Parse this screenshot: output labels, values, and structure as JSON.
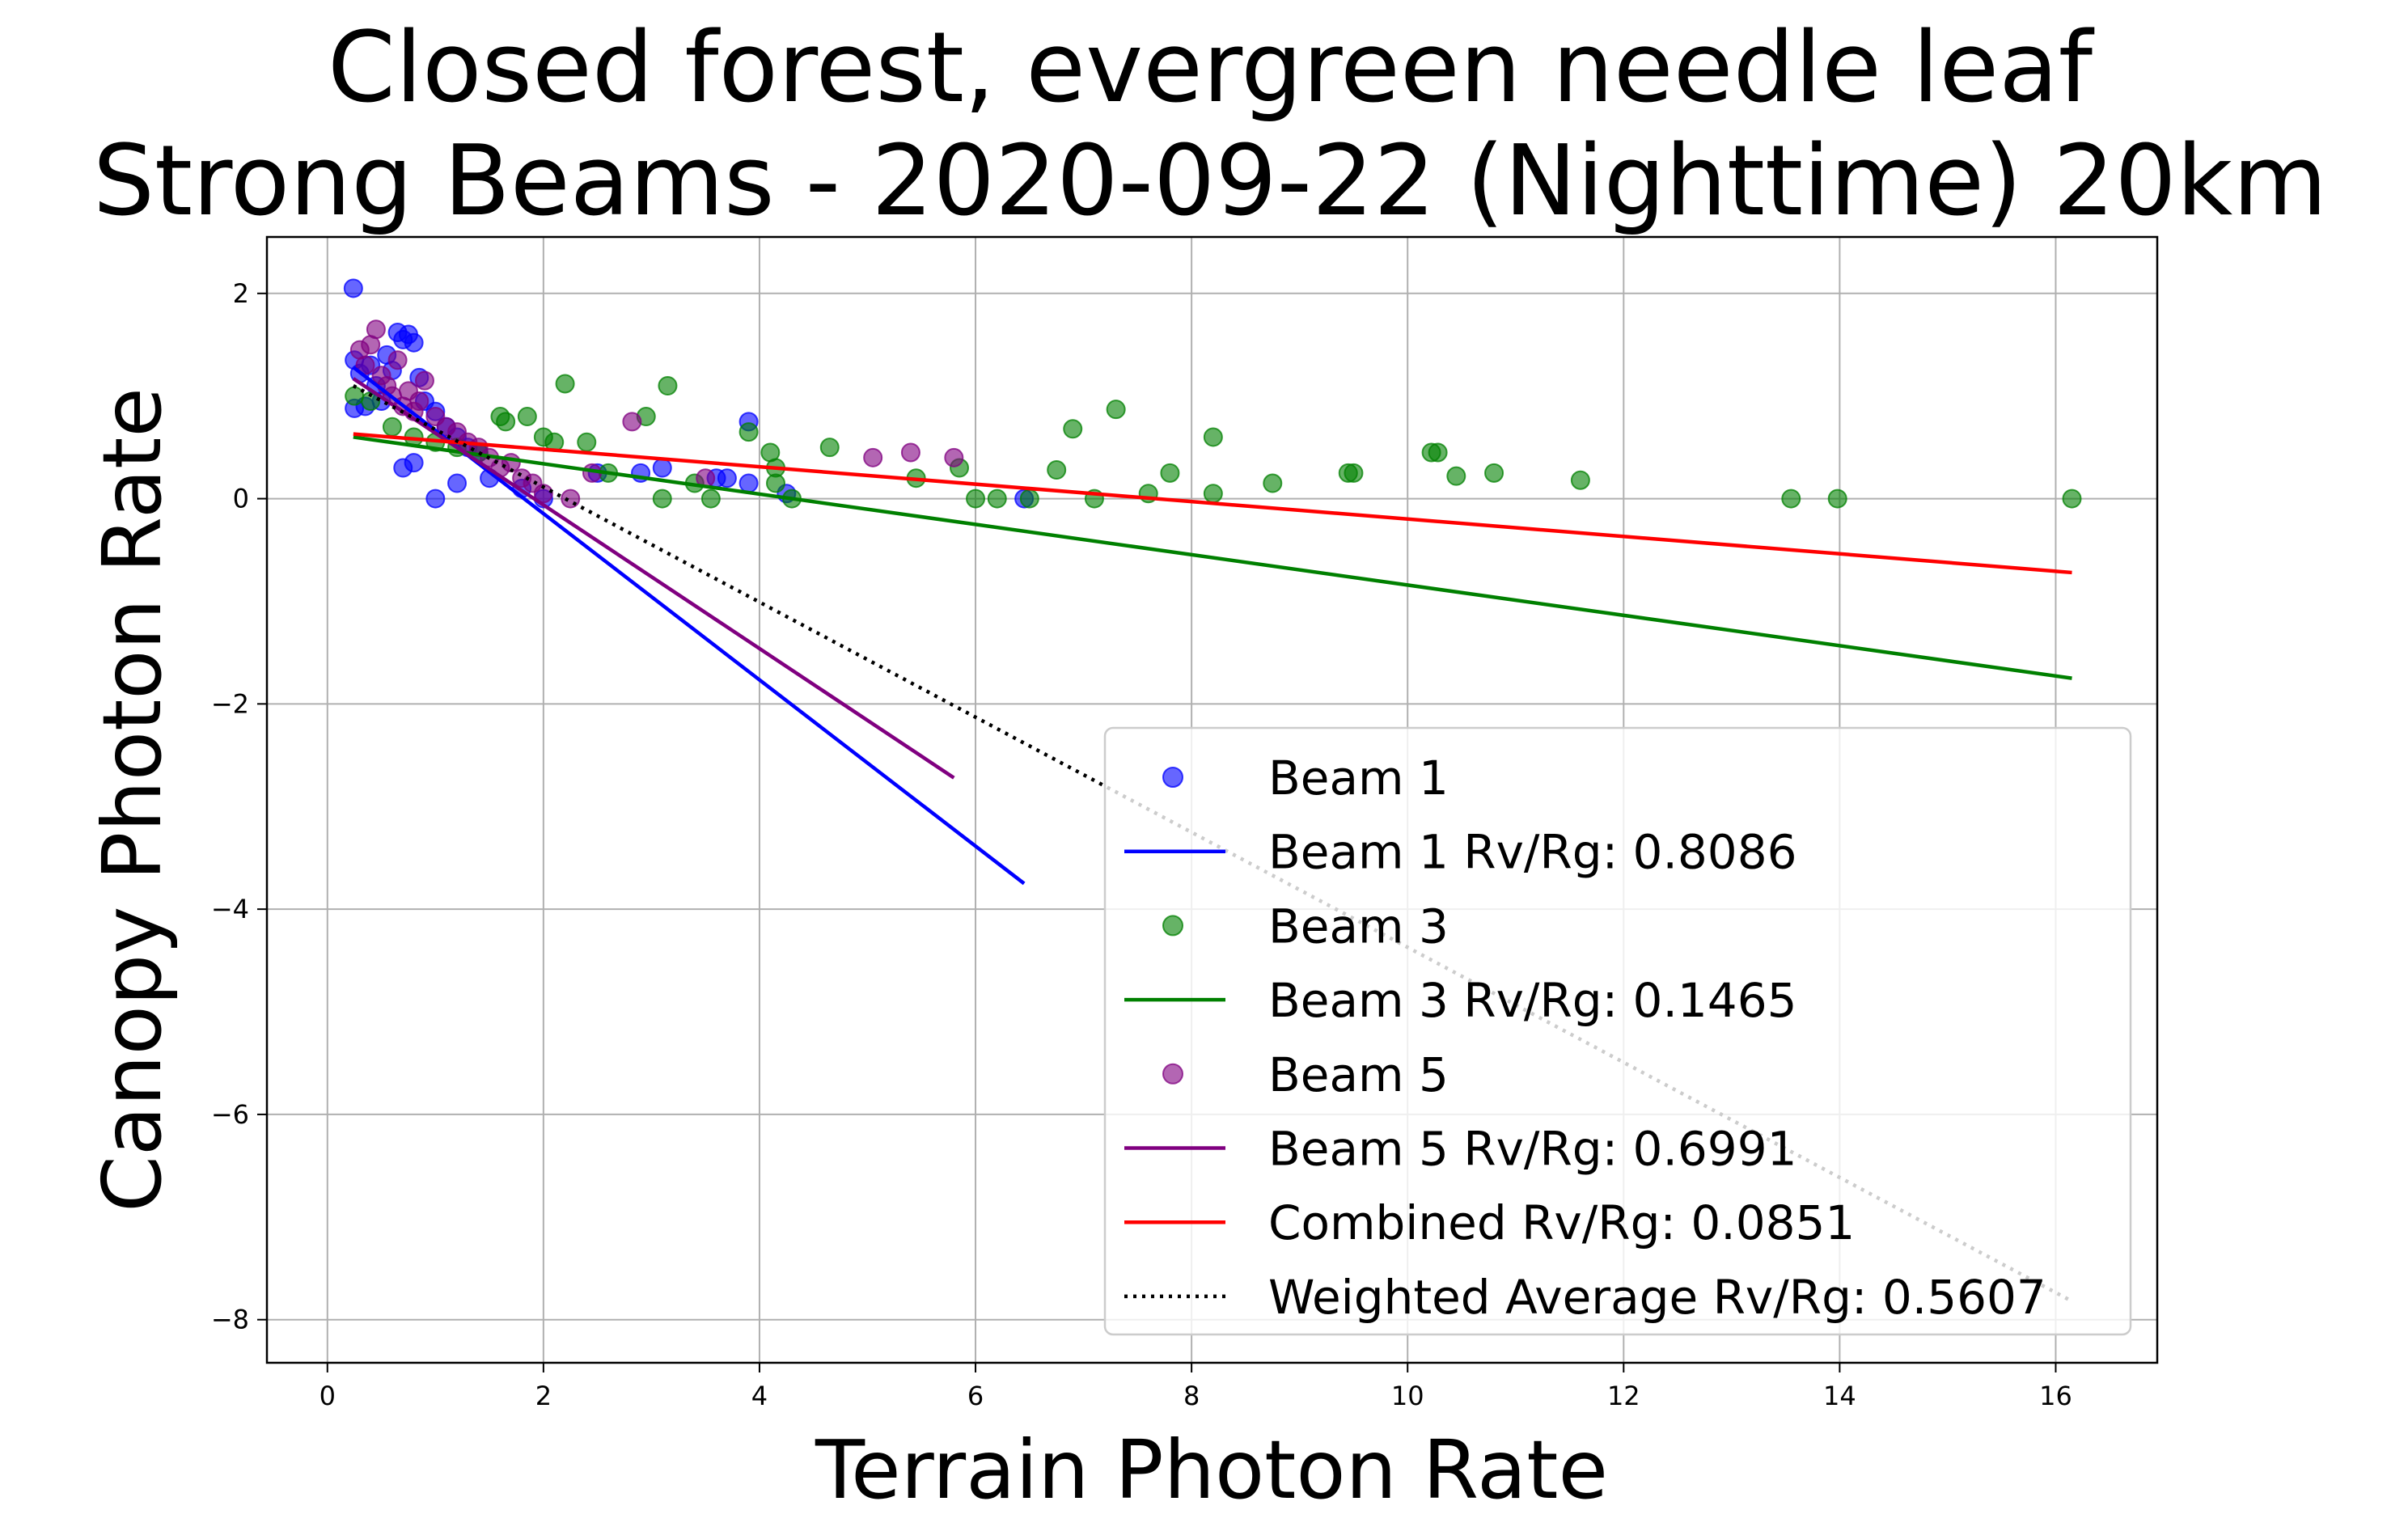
{
  "chart_data": {
    "type": "scatter",
    "title": "Closed forest, evergreen needle leaf\nStrong Beams - 2020-09-22 (Nighttime) 20km",
    "title_lines": [
      "Closed forest, evergreen needle leaf",
      "Strong Beams - 2020-09-22 (Nighttime) 20km"
    ],
    "xlabel": "Terrain Photon Rate",
    "ylabel": "Canopy Photon Rate",
    "xlim": [
      -0.56,
      16.94
    ],
    "ylim": [
      -8.42,
      2.55
    ],
    "xticks": [
      0,
      2,
      4,
      6,
      8,
      10,
      12,
      14,
      16
    ],
    "yticks": [
      -8,
      -6,
      -4,
      -2,
      0,
      2
    ],
    "xtick_labels": [
      "0",
      "2",
      "4",
      "6",
      "8",
      "10",
      "12",
      "14",
      "16"
    ],
    "ytick_labels": [
      "−8",
      "−6",
      "−4",
      "−2",
      "0",
      "2"
    ],
    "grid": true,
    "legend_position": "lower-right",
    "series": [
      {
        "name": "Beam 1",
        "kind": "scatter",
        "color": "#0000ff",
        "points": [
          [
            0.24,
            2.05
          ],
          [
            0.25,
            1.35
          ],
          [
            0.25,
            0.88
          ],
          [
            0.3,
            1.22
          ],
          [
            0.35,
            0.9
          ],
          [
            0.4,
            1.3
          ],
          [
            0.45,
            1.1
          ],
          [
            0.5,
            0.95
          ],
          [
            0.55,
            1.4
          ],
          [
            0.6,
            1.25
          ],
          [
            0.65,
            1.62
          ],
          [
            0.7,
            1.55
          ],
          [
            0.75,
            1.6
          ],
          [
            0.8,
            1.52
          ],
          [
            0.85,
            1.18
          ],
          [
            0.9,
            0.95
          ],
          [
            1.0,
            0.85
          ],
          [
            1.1,
            0.7
          ],
          [
            1.2,
            0.6
          ],
          [
            1.3,
            0.5
          ],
          [
            1.4,
            0.45
          ],
          [
            0.7,
            0.3
          ],
          [
            0.8,
            0.35
          ],
          [
            1.0,
            0.0
          ],
          [
            1.2,
            0.15
          ],
          [
            1.5,
            0.2
          ],
          [
            1.8,
            0.1
          ],
          [
            2.0,
            0.0
          ],
          [
            2.5,
            0.25
          ],
          [
            2.9,
            0.25
          ],
          [
            3.1,
            0.3
          ],
          [
            3.6,
            0.2
          ],
          [
            3.7,
            0.2
          ],
          [
            3.9,
            0.75
          ],
          [
            3.9,
            0.15
          ],
          [
            4.25,
            0.05
          ],
          [
            6.45,
            0.0
          ]
        ]
      },
      {
        "name": "Beam 1 Rv/Rg: 0.8086",
        "kind": "line",
        "color": "#0000ff",
        "x": [
          0.24,
          6.45
        ],
        "y": [
          1.28,
          -3.75
        ]
      },
      {
        "name": "Beam 3",
        "kind": "scatter",
        "color": "#008000",
        "points": [
          [
            0.25,
            1.0
          ],
          [
            0.4,
            0.95
          ],
          [
            0.6,
            0.7
          ],
          [
            0.8,
            0.6
          ],
          [
            1.0,
            0.55
          ],
          [
            1.2,
            0.5
          ],
          [
            1.4,
            0.45
          ],
          [
            1.6,
            0.8
          ],
          [
            1.65,
            0.75
          ],
          [
            1.85,
            0.8
          ],
          [
            2.0,
            0.6
          ],
          [
            2.1,
            0.55
          ],
          [
            2.2,
            1.12
          ],
          [
            2.4,
            0.55
          ],
          [
            2.6,
            0.25
          ],
          [
            2.95,
            0.8
          ],
          [
            3.15,
            1.1
          ],
          [
            3.1,
            0.0
          ],
          [
            3.4,
            0.15
          ],
          [
            3.55,
            0.0
          ],
          [
            3.9,
            0.65
          ],
          [
            4.1,
            0.45
          ],
          [
            4.15,
            0.3
          ],
          [
            4.15,
            0.15
          ],
          [
            4.3,
            0.0
          ],
          [
            4.65,
            0.5
          ],
          [
            5.45,
            0.2
          ],
          [
            5.85,
            0.3
          ],
          [
            6.0,
            0.0
          ],
          [
            6.2,
            0.0
          ],
          [
            6.5,
            0.0
          ],
          [
            6.75,
            0.28
          ],
          [
            6.9,
            0.68
          ],
          [
            7.1,
            0.0
          ],
          [
            7.3,
            0.87
          ],
          [
            7.6,
            0.05
          ],
          [
            7.8,
            0.25
          ],
          [
            8.2,
            0.6
          ],
          [
            8.2,
            0.05
          ],
          [
            8.75,
            0.15
          ],
          [
            9.45,
            0.25
          ],
          [
            9.5,
            0.25
          ],
          [
            10.22,
            0.45
          ],
          [
            10.28,
            0.45
          ],
          [
            10.45,
            0.22
          ],
          [
            10.8,
            0.25
          ],
          [
            11.6,
            0.18
          ],
          [
            13.55,
            0.0
          ],
          [
            13.98,
            0.0
          ],
          [
            16.15,
            0.0
          ]
        ]
      },
      {
        "name": "Beam 3 Rv/Rg: 0.1465",
        "kind": "line",
        "color": "#008000",
        "x": [
          0.24,
          16.15
        ],
        "y": [
          0.6,
          -1.75
        ]
      },
      {
        "name": "Beam 5",
        "kind": "scatter",
        "color": "#800080",
        "points": [
          [
            0.3,
            1.45
          ],
          [
            0.35,
            1.3
          ],
          [
            0.4,
            1.5
          ],
          [
            0.45,
            1.65
          ],
          [
            0.5,
            1.2
          ],
          [
            0.55,
            1.1
          ],
          [
            0.6,
            1.0
          ],
          [
            0.65,
            1.35
          ],
          [
            0.7,
            0.9
          ],
          [
            0.75,
            1.05
          ],
          [
            0.8,
            0.85
          ],
          [
            0.85,
            0.95
          ],
          [
            0.9,
            1.15
          ],
          [
            1.0,
            0.8
          ],
          [
            1.1,
            0.7
          ],
          [
            1.2,
            0.65
          ],
          [
            1.3,
            0.55
          ],
          [
            1.4,
            0.5
          ],
          [
            1.5,
            0.4
          ],
          [
            1.6,
            0.3
          ],
          [
            1.7,
            0.35
          ],
          [
            1.8,
            0.2
          ],
          [
            1.9,
            0.15
          ],
          [
            2.0,
            0.05
          ],
          [
            2.25,
            0.0
          ],
          [
            2.45,
            0.25
          ],
          [
            2.82,
            0.75
          ],
          [
            3.5,
            0.2
          ],
          [
            5.05,
            0.4
          ],
          [
            5.4,
            0.45
          ],
          [
            5.8,
            0.4
          ]
        ]
      },
      {
        "name": "Beam 5 Rv/Rg: 0.6991",
        "kind": "line",
        "color": "#800080",
        "x": [
          0.24,
          5.8
        ],
        "y": [
          1.17,
          -2.72
        ]
      },
      {
        "name": "Combined Rv/Rg: 0.0851",
        "kind": "line",
        "color": "#ff0000",
        "x": [
          0.24,
          16.15
        ],
        "y": [
          0.63,
          -0.72
        ]
      },
      {
        "name": "Weighted Average Rv/Rg: 0.5607",
        "kind": "line",
        "style": "dotted",
        "color": "#000000",
        "x": [
          0.24,
          16.15
        ],
        "y": [
          1.1,
          -7.82
        ]
      }
    ],
    "legend": [
      {
        "label": "Beam 1",
        "kind": "scatter",
        "color": "#0000ff"
      },
      {
        "label": "Beam 1 Rv/Rg: 0.8086",
        "kind": "line",
        "color": "#0000ff"
      },
      {
        "label": "Beam 3",
        "kind": "scatter",
        "color": "#008000"
      },
      {
        "label": "Beam 3 Rv/Rg: 0.1465",
        "kind": "line",
        "color": "#008000"
      },
      {
        "label": "Beam 5",
        "kind": "scatter",
        "color": "#800080"
      },
      {
        "label": "Beam 5 Rv/Rg: 0.6991",
        "kind": "line",
        "color": "#800080"
      },
      {
        "label": "Combined Rv/Rg: 0.0851",
        "kind": "line",
        "color": "#ff0000"
      },
      {
        "label": "Weighted Average Rv/Rg: 0.5607",
        "kind": "line",
        "style": "dotted",
        "color": "#000000"
      }
    ]
  }
}
